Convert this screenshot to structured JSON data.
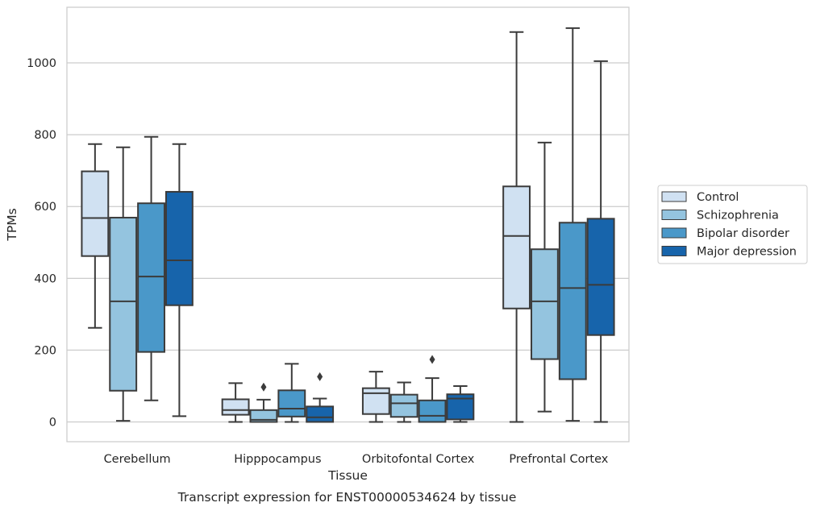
{
  "chart_data": {
    "type": "box",
    "title": "Transcript expression for ENST00000534624 by tissue",
    "xlabel": "Tissue",
    "ylabel": "TPMs",
    "ylim": [
      -55,
      1155
    ],
    "yticks": [
      0,
      200,
      400,
      600,
      800,
      1000
    ],
    "grid": "horizontal",
    "legend_position": "right",
    "categories": [
      "Cerebellum",
      "Hipppocampus",
      "Orbitofontal Cortex",
      "Prefrontal Cortex"
    ],
    "series": [
      {
        "name": "Control",
        "color": "#d0e1f2",
        "boxes": [
          {
            "whisker_low": 262,
            "q1": 462,
            "median": 568,
            "q3": 698,
            "whisker_high": 774,
            "outliers": []
          },
          {
            "whisker_low": 0,
            "q1": 20,
            "median": 33,
            "q3": 63,
            "whisker_high": 108,
            "outliers": []
          },
          {
            "whisker_low": 0,
            "q1": 22,
            "median": 80,
            "q3": 94,
            "whisker_high": 140,
            "outliers": []
          },
          {
            "whisker_low": 0,
            "q1": 316,
            "median": 518,
            "q3": 656,
            "whisker_high": 1086,
            "outliers": []
          }
        ]
      },
      {
        "name": "Schizophrenia",
        "color": "#94c4df",
        "boxes": [
          {
            "whisker_low": 3,
            "q1": 87,
            "median": 336,
            "q3": 569,
            "whisker_high": 765,
            "outliers": []
          },
          {
            "whisker_low": 0,
            "q1": 0,
            "median": 6,
            "q3": 33,
            "whisker_high": 62,
            "outliers": [
              97
            ]
          },
          {
            "whisker_low": 0,
            "q1": 14,
            "median": 52,
            "q3": 76,
            "whisker_high": 110,
            "outliers": []
          },
          {
            "whisker_low": 29,
            "q1": 175,
            "median": 336,
            "q3": 481,
            "whisker_high": 778,
            "outliers": []
          }
        ]
      },
      {
        "name": "Bipolar disorder",
        "color": "#4a98c9",
        "boxes": [
          {
            "whisker_low": 60,
            "q1": 195,
            "median": 405,
            "q3": 609,
            "whisker_high": 794,
            "outliers": []
          },
          {
            "whisker_low": 0,
            "q1": 15,
            "median": 37,
            "q3": 88,
            "whisker_high": 162,
            "outliers": []
          },
          {
            "whisker_low": 0,
            "q1": 0,
            "median": 17,
            "q3": 60,
            "whisker_high": 122,
            "outliers": [
              174
            ]
          },
          {
            "whisker_low": 3,
            "q1": 119,
            "median": 373,
            "q3": 555,
            "whisker_high": 1097,
            "outliers": []
          }
        ]
      },
      {
        "name": "Major depression",
        "color": "#1764ab",
        "boxes": [
          {
            "whisker_low": 16,
            "q1": 325,
            "median": 450,
            "q3": 641,
            "whisker_high": 774,
            "outliers": []
          },
          {
            "whisker_low": 0,
            "q1": 0,
            "median": 13,
            "q3": 43,
            "whisker_high": 65,
            "outliers": [
              126
            ]
          },
          {
            "whisker_low": 0,
            "q1": 7,
            "median": 65,
            "q3": 77,
            "whisker_high": 100,
            "outliers": []
          },
          {
            "whisker_low": 0,
            "q1": 242,
            "median": 382,
            "q3": 566,
            "whisker_high": 1005,
            "outliers": []
          }
        ]
      }
    ]
  }
}
